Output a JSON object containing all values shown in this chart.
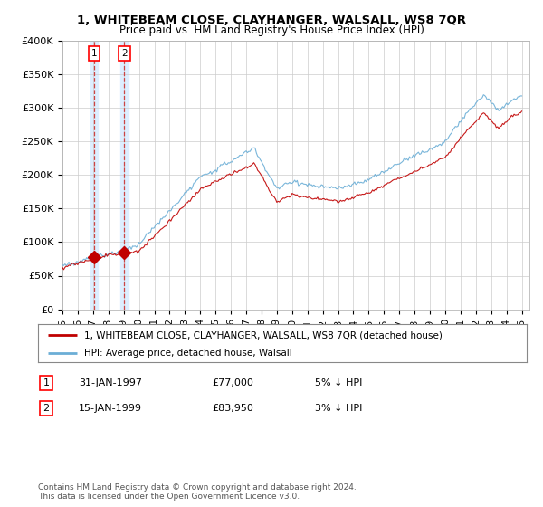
{
  "title1": "1, WHITEBEAM CLOSE, CLAYHANGER, WALSALL, WS8 7QR",
  "title2": "Price paid vs. HM Land Registry's House Price Index (HPI)",
  "ylabel_ticks": [
    "£0",
    "£50K",
    "£100K",
    "£150K",
    "£200K",
    "£250K",
    "£300K",
    "£350K",
    "£400K"
  ],
  "ytick_values": [
    0,
    50000,
    100000,
    150000,
    200000,
    250000,
    300000,
    350000,
    400000
  ],
  "ylim": [
    0,
    400000
  ],
  "xlim_start": 1995.0,
  "xlim_end": 2025.5,
  "xtick_years": [
    1995,
    1996,
    1997,
    1998,
    1999,
    2000,
    2001,
    2002,
    2003,
    2004,
    2005,
    2006,
    2007,
    2008,
    2009,
    2010,
    2011,
    2012,
    2013,
    2014,
    2015,
    2016,
    2017,
    2018,
    2019,
    2020,
    2021,
    2022,
    2023,
    2024,
    2025
  ],
  "xtick_labels": [
    "95",
    "96",
    "97",
    "98",
    "99",
    "00",
    "01",
    "02",
    "03",
    "04",
    "05",
    "06",
    "07",
    "08",
    "09",
    "10",
    "11",
    "12",
    "13",
    "14",
    "15",
    "16",
    "17",
    "18",
    "19",
    "20",
    "21",
    "22",
    "23",
    "24",
    "25"
  ],
  "sale1_x": 1997.08,
  "sale1_y": 77000,
  "sale2_x": 1999.04,
  "sale2_y": 83950,
  "legend_line1": "1, WHITEBEAM CLOSE, CLAYHANGER, WALSALL, WS8 7QR (detached house)",
  "legend_line2": "HPI: Average price, detached house, Walsall",
  "footnote": "Contains HM Land Registry data © Crown copyright and database right 2024.\nThis data is licensed under the Open Government Licence v3.0.",
  "hpi_color": "#6baed6",
  "sale_color": "#c00000",
  "grid_color": "#cccccc",
  "vline_color": "#cc4444",
  "vfill_color": "#ddeeff",
  "bg_color": "#ffffff"
}
